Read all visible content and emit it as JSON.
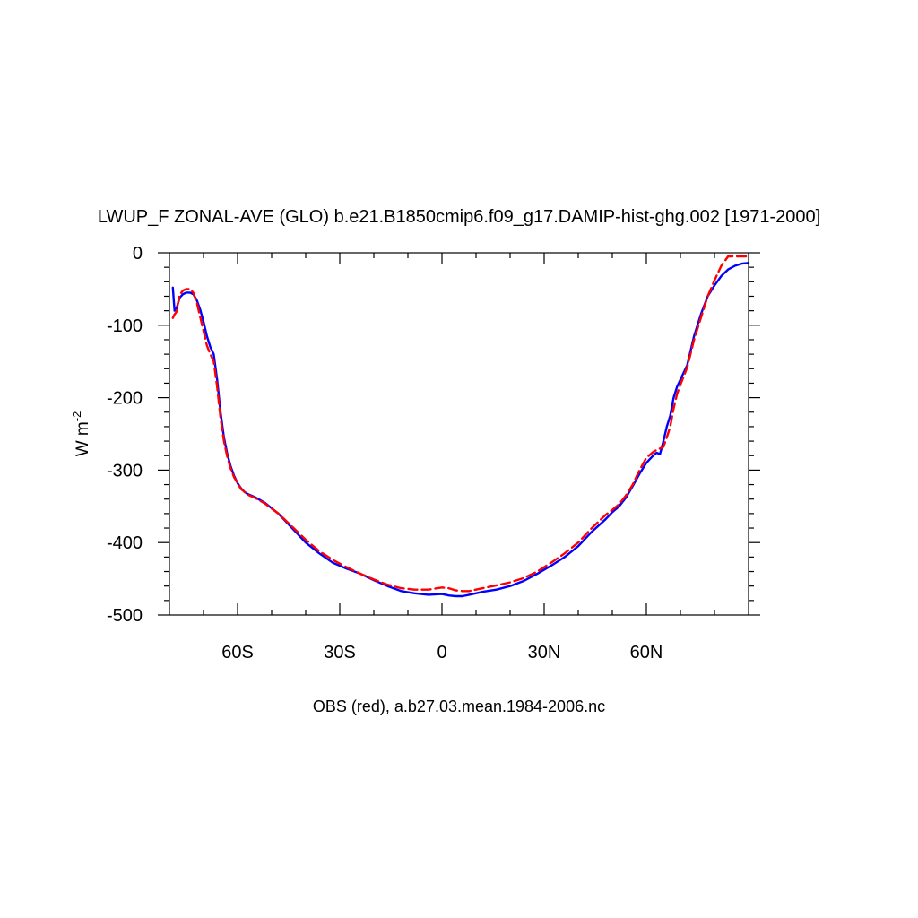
{
  "chart_data": {
    "type": "line",
    "title": "LWUP_F ZONAL-AVE (GLO) b.e21.B1850cmip6.f09_g17.DAMIP-hist-ghg.002 [1971-2000]",
    "xlabel": "OBS (red), a.b27.03.mean.1984-2006.nc",
    "ylabel_main": "W m",
    "ylabel_sup": "-2",
    "xlim": [
      -80,
      90
    ],
    "ylim": [
      -500,
      0
    ],
    "xticks": [
      {
        "value": -60,
        "label": "60S"
      },
      {
        "value": -30,
        "label": "30S"
      },
      {
        "value": 0,
        "label": "0"
      },
      {
        "value": 30,
        "label": "30N"
      },
      {
        "value": 60,
        "label": "60N"
      }
    ],
    "yticks": [
      {
        "value": 0,
        "label": "0"
      },
      {
        "value": -100,
        "label": "-100"
      },
      {
        "value": -200,
        "label": "-200"
      },
      {
        "value": -300,
        "label": "-300"
      },
      {
        "value": -400,
        "label": "-400"
      },
      {
        "value": -500,
        "label": "-500"
      }
    ],
    "series": [
      {
        "color": "#0000ff",
        "style": "solid",
        "x": [
          -79,
          -78.5,
          -78,
          -77,
          -76,
          -75,
          -74,
          -73,
          -72,
          -71,
          -70,
          -69,
          -68,
          -67,
          -66,
          -65,
          -64,
          -63,
          -62,
          -61,
          -60,
          -59,
          -58,
          -57,
          -56,
          -55,
          -52,
          -48,
          -44,
          -40,
          -36,
          -32,
          -28,
          -24,
          -20,
          -16,
          -12,
          -8,
          -4,
          0,
          2,
          4,
          6,
          8,
          12,
          16,
          20,
          24,
          28,
          32,
          36,
          40,
          44,
          48,
          50,
          52,
          54,
          56,
          58,
          60,
          62,
          63,
          64,
          65,
          66,
          67,
          68,
          69,
          70,
          72,
          74,
          76,
          78,
          80,
          82,
          84,
          86,
          88,
          90
        ],
        "y": [
          -48,
          -80,
          -78,
          -62,
          -57,
          -55,
          -55,
          -57,
          -65,
          -78,
          -95,
          -115,
          -130,
          -140,
          -175,
          -220,
          -255,
          -278,
          -295,
          -308,
          -318,
          -325,
          -330,
          -333,
          -335,
          -337,
          -345,
          -360,
          -380,
          -400,
          -415,
          -428,
          -436,
          -443,
          -452,
          -460,
          -467,
          -470,
          -472,
          -471,
          -473,
          -474,
          -474,
          -472,
          -468,
          -465,
          -460,
          -453,
          -443,
          -432,
          -420,
          -405,
          -385,
          -368,
          -358,
          -350,
          -338,
          -322,
          -305,
          -290,
          -280,
          -276,
          -278,
          -260,
          -240,
          -225,
          -200,
          -185,
          -175,
          -155,
          -115,
          -85,
          -60,
          -45,
          -32,
          -23,
          -18,
          -15,
          -14
        ]
      },
      {
        "color": "#ff0000",
        "style": "dashed",
        "x": [
          -79,
          -78.5,
          -78,
          -77,
          -76,
          -75,
          -74,
          -73,
          -72,
          -71,
          -70,
          -69,
          -68,
          -67,
          -66,
          -65,
          -64,
          -63,
          -62,
          -61,
          -60,
          -59,
          -58,
          -57,
          -56,
          -55,
          -52,
          -48,
          -44,
          -40,
          -36,
          -32,
          -28,
          -24,
          -20,
          -16,
          -12,
          -8,
          -4,
          0,
          2,
          4,
          6,
          8,
          12,
          16,
          20,
          24,
          28,
          32,
          36,
          40,
          44,
          48,
          50,
          52,
          54,
          56,
          58,
          60,
          62,
          63,
          64,
          65,
          66,
          67,
          68,
          69,
          70,
          72,
          74,
          76,
          78,
          80,
          82,
          84,
          86,
          88,
          90
        ],
        "y": [
          -90,
          -85,
          -82,
          -58,
          -52,
          -50,
          -50,
          -55,
          -68,
          -88,
          -108,
          -128,
          -140,
          -150,
          -185,
          -228,
          -260,
          -282,
          -298,
          -310,
          -318,
          -326,
          -330,
          -334,
          -336,
          -338,
          -346,
          -360,
          -378,
          -396,
          -412,
          -424,
          -434,
          -443,
          -451,
          -458,
          -463,
          -465,
          -465,
          -462,
          -463,
          -466,
          -467,
          -467,
          -463,
          -459,
          -455,
          -449,
          -440,
          -428,
          -415,
          -400,
          -380,
          -362,
          -355,
          -347,
          -335,
          -320,
          -300,
          -283,
          -275,
          -272,
          -270,
          -268,
          -255,
          -240,
          -215,
          -195,
          -182,
          -158,
          -120,
          -90,
          -60,
          -38,
          -18,
          -5,
          -5,
          -5,
          -5
        ]
      }
    ]
  }
}
